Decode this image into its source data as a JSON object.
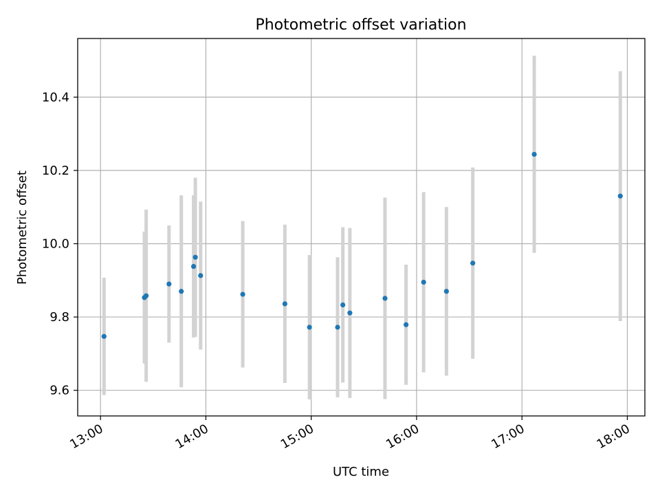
{
  "chart_data": {
    "type": "scatter",
    "title": "Photometric offset variation",
    "xlabel": "UTC time",
    "ylabel": "Photometric offset",
    "xlim": [
      "12:47",
      "18:10"
    ],
    "ylim": [
      9.53,
      10.56
    ],
    "xticks": [
      "13:00",
      "14:00",
      "15:00",
      "16:00",
      "17:00",
      "18:00"
    ],
    "yticks": [
      9.6,
      9.8,
      10.0,
      10.2,
      10.4
    ],
    "ytick_labels": [
      "9.6",
      "9.8",
      "10.0",
      "10.2",
      "10.4"
    ],
    "grid": true,
    "marker_color": "#1f77b4",
    "errorbar_color": "#d3d3d3",
    "points": [
      {
        "x": "13:02",
        "y": 9.747,
        "err": 0.16
      },
      {
        "x": "13:25",
        "y": 9.853,
        "err": 0.18
      },
      {
        "x": "13:26",
        "y": 9.858,
        "err": 0.235
      },
      {
        "x": "13:39",
        "y": 9.89,
        "err": 0.16
      },
      {
        "x": "13:46",
        "y": 9.87,
        "err": 0.262
      },
      {
        "x": "13:53",
        "y": 9.938,
        "err": 0.194
      },
      {
        "x": "13:54",
        "y": 9.963,
        "err": 0.217
      },
      {
        "x": "13:57",
        "y": 9.913,
        "err": 0.202
      },
      {
        "x": "14:21",
        "y": 9.862,
        "err": 0.2
      },
      {
        "x": "14:45",
        "y": 9.836,
        "err": 0.216
      },
      {
        "x": "14:59",
        "y": 9.772,
        "err": 0.197
      },
      {
        "x": "15:15",
        "y": 9.772,
        "err": 0.191
      },
      {
        "x": "15:18",
        "y": 9.833,
        "err": 0.212
      },
      {
        "x": "15:22",
        "y": 9.811,
        "err": 0.232
      },
      {
        "x": "15:42",
        "y": 9.851,
        "err": 0.275
      },
      {
        "x": "15:54",
        "y": 9.779,
        "err": 0.164
      },
      {
        "x": "16:04",
        "y": 9.895,
        "err": 0.246
      },
      {
        "x": "16:17",
        "y": 9.87,
        "err": 0.23
      },
      {
        "x": "16:32",
        "y": 9.947,
        "err": 0.261
      },
      {
        "x": "17:07",
        "y": 10.244,
        "err": 0.269
      },
      {
        "x": "17:56",
        "y": 10.13,
        "err": 0.341
      }
    ]
  }
}
